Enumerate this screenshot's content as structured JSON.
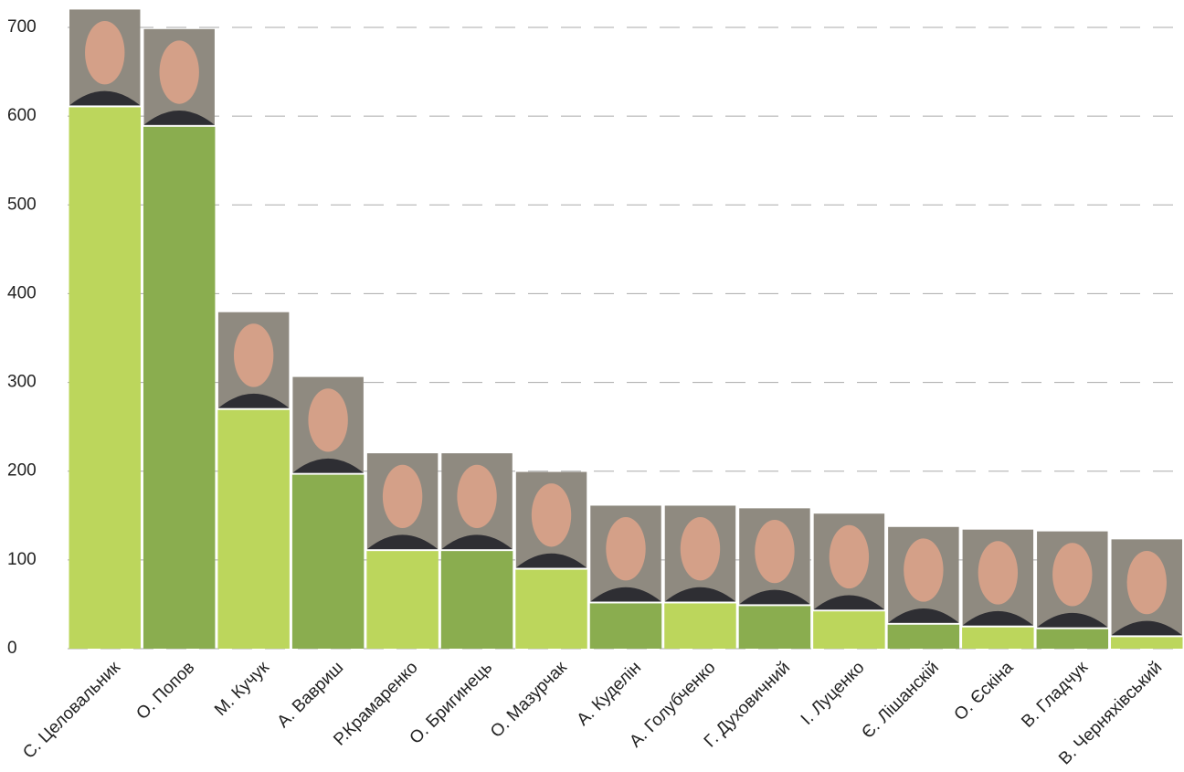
{
  "chart_data": {
    "type": "bar",
    "categories": [
      "С. Целовальник",
      "О. Попов",
      "М. Кучук",
      "А. Вавриш",
      "Р.Крамаренко",
      "О. Бригинець",
      "О. Мазурчак",
      "А. Куделін",
      "А. Голубченко",
      "Г. Духовичний",
      "І. Луценко",
      "Є. Лішанскій",
      "О. Єскіна",
      "В. Гладчук",
      "В. Черняхівський"
    ],
    "values": [
      610,
      588,
      269,
      196,
      110,
      110,
      89,
      51,
      51,
      48,
      42,
      27,
      24,
      22,
      13
    ],
    "colors": [
      "#bcd65c",
      "#8aad4f",
      "#bcd65c",
      "#8aad4f",
      "#bcd65c",
      "#8aad4f",
      "#bcd65c",
      "#8aad4f",
      "#bcd65c",
      "#8aad4f",
      "#bcd65c",
      "#8aad4f",
      "#bcd65c",
      "#8aad4f",
      "#bcd65c"
    ],
    "ylim": [
      0,
      700
    ],
    "yticks": [
      0,
      100,
      200,
      300,
      400,
      500,
      600,
      700
    ],
    "grid": true
  }
}
